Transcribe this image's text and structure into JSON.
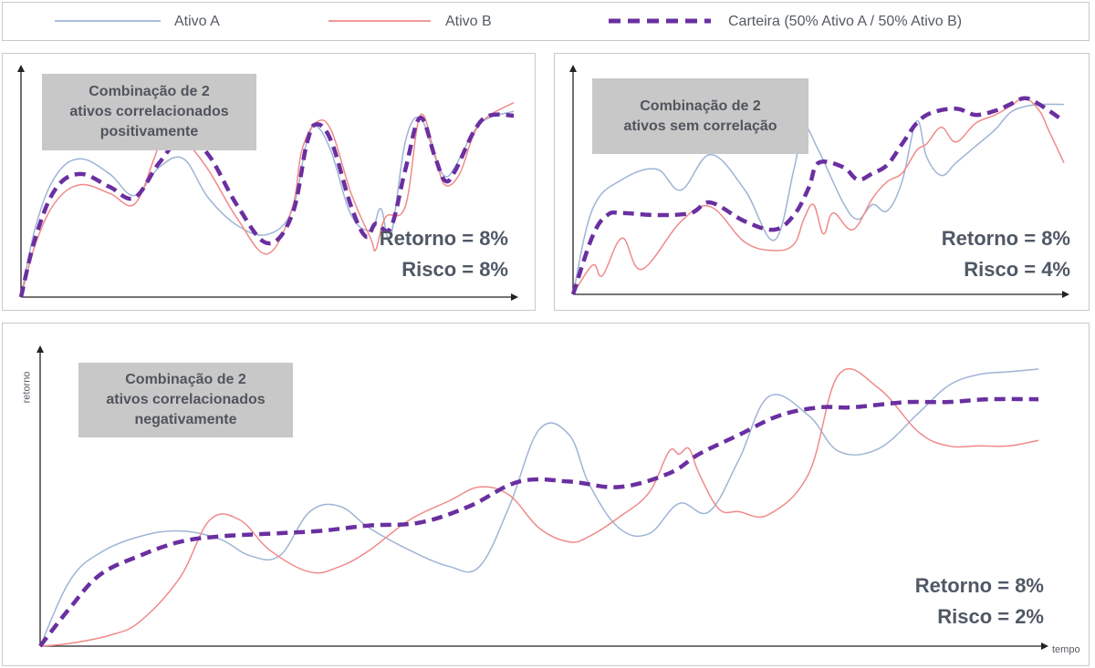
{
  "legend": {
    "items": [
      {
        "label": "Ativo A",
        "color": "#9fb4d6",
        "style": "solid"
      },
      {
        "label": "Ativo B",
        "color": "#f08a8a",
        "style": "solid"
      },
      {
        "label": "Carteira (50% Ativo A / 50% Ativo B)",
        "color": "#6a2fa0",
        "style": "dashed"
      }
    ]
  },
  "chart_data": [
    {
      "type": "line",
      "title": "Combinação de 2\nativos correlacionados\npositivamente",
      "annotations": [
        "Retorno = 8%",
        "Risco = 8%"
      ],
      "xlim": [
        0,
        100
      ],
      "ylim": [
        0,
        100
      ],
      "series": [
        {
          "name": "Ativo A",
          "x": [
            0,
            3,
            7,
            12,
            18,
            23,
            28,
            33,
            38,
            44,
            50,
            55,
            58,
            60,
            63,
            67,
            71,
            73,
            75,
            78,
            81,
            84,
            86,
            88,
            92,
            95,
            100
          ],
          "y": [
            0,
            33,
            56,
            64,
            57,
            47,
            60,
            64,
            46,
            33,
            29,
            40,
            72,
            79,
            67,
            38,
            31,
            41,
            28,
            72,
            83,
            65,
            56,
            60,
            77,
            83,
            86
          ]
        },
        {
          "name": "Ativo B",
          "x": [
            0,
            3,
            7,
            12,
            18,
            23,
            27,
            30,
            33,
            38,
            44,
            50,
            55,
            57,
            60,
            63,
            67,
            71,
            72,
            74,
            78,
            81,
            84,
            86,
            89,
            92,
            95,
            100
          ],
          "y": [
            0,
            25,
            44,
            52,
            48,
            43,
            64,
            83,
            74,
            59,
            36,
            20,
            41,
            68,
            81,
            77,
            48,
            27,
            22,
            37,
            42,
            84,
            66,
            52,
            57,
            76,
            84,
            90
          ]
        },
        {
          "name": "Carteira (50% Ativo A / 50% Ativo B)",
          "x": [
            0,
            3,
            7,
            12,
            18,
            23,
            28,
            33,
            38,
            44,
            50,
            55,
            58,
            60,
            63,
            67,
            70,
            72,
            75,
            78,
            81,
            84,
            86,
            88,
            92,
            95,
            100
          ],
          "y": [
            0,
            28,
            50,
            57,
            51,
            46,
            62,
            74,
            66,
            42,
            25,
            38,
            71,
            80,
            72,
            42,
            28,
            34,
            32,
            59,
            83,
            65,
            54,
            58,
            77,
            84,
            84
          ]
        }
      ]
    },
    {
      "type": "line",
      "title": "Combinação de 2\nativos sem correlação",
      "annotations": [
        "Retorno = 8%",
        "Risco = 4%"
      ],
      "xlim": [
        0,
        100
      ],
      "ylim": [
        0,
        100
      ],
      "series": [
        {
          "name": "Ativo A",
          "x": [
            0,
            4,
            10,
            17,
            22,
            28,
            35,
            41,
            45,
            47,
            50,
            55,
            58,
            61,
            64,
            67,
            70,
            72,
            75,
            78,
            82,
            86,
            89,
            92,
            95,
            100
          ],
          "y": [
            0,
            41,
            55,
            60,
            50,
            67,
            50,
            26,
            60,
            80,
            69,
            44,
            36,
            43,
            40,
            54,
            83,
            66,
            57,
            63,
            71,
            79,
            87,
            90,
            91,
            91
          ]
        },
        {
          "name": "Ativo B",
          "x": [
            0,
            4,
            6,
            10,
            14,
            22,
            28,
            35,
            41,
            45,
            47,
            49,
            51,
            53,
            57,
            61,
            64,
            67,
            70,
            72,
            75,
            78,
            82,
            86,
            89,
            92,
            95,
            97,
            100
          ],
          "y": [
            0,
            14,
            9,
            27,
            12,
            35,
            42,
            25,
            21,
            24,
            36,
            43,
            29,
            39,
            31,
            46,
            54,
            58,
            69,
            72,
            80,
            73,
            82,
            86,
            90,
            94,
            88,
            78,
            63
          ]
        },
        {
          "name": "Carteira (50% Ativo A / 50% Ativo B)",
          "x": [
            0,
            4,
            7,
            10,
            17,
            24,
            28,
            35,
            41,
            45,
            48,
            50,
            55,
            58,
            61,
            64,
            67,
            70,
            73,
            78,
            82,
            86,
            89,
            92,
            95,
            100
          ],
          "y": [
            0,
            28,
            38,
            39,
            38,
            39,
            44,
            35,
            31,
            38,
            51,
            63,
            61,
            55,
            58,
            62,
            72,
            82,
            87,
            89,
            86,
            88,
            91,
            94,
            91,
            83
          ]
        }
      ]
    },
    {
      "type": "line",
      "title": "Combinação de 2\nativos correlacionados\nnegativamente",
      "xlabel": "tempo",
      "ylabel": "retorno",
      "annotations": [
        "Retorno = 8%",
        "Risco = 2%"
      ],
      "xlim": [
        0,
        100
      ],
      "ylim": [
        0,
        100
      ],
      "series": [
        {
          "name": "Ativo A",
          "x": [
            0,
            3,
            6,
            10,
            14,
            18,
            21,
            24,
            27,
            30,
            33,
            37,
            41,
            44,
            47,
            50,
            53,
            55,
            58,
            61,
            64,
            67,
            70,
            73,
            77,
            80,
            84,
            88,
            91,
            94,
            97,
            100
          ],
          "y": [
            0,
            24,
            34,
            40,
            42,
            39,
            33,
            33,
            49,
            51,
            43,
            35,
            29,
            29,
            51,
            79,
            77,
            59,
            43,
            41,
            52,
            49,
            68,
            91,
            84,
            71,
            72,
            85,
            95,
            99,
            100,
            101
          ]
        },
        {
          "name": "Ativo B",
          "x": [
            0,
            3,
            7,
            10,
            14,
            17,
            20,
            23,
            27,
            30,
            33,
            37,
            41,
            44,
            47,
            50,
            53,
            55,
            58,
            61,
            63,
            64,
            65,
            66,
            68,
            70,
            73,
            77,
            80,
            84,
            88,
            91,
            94,
            97,
            100
          ],
          "y": [
            0,
            1,
            4,
            9,
            25,
            46,
            46,
            35,
            27,
            29,
            35,
            46,
            53,
            58,
            55,
            43,
            38,
            40,
            47,
            56,
            71,
            70,
            72,
            63,
            50,
            49,
            48,
            63,
            99,
            94,
            78,
            73,
            73,
            73,
            75
          ]
        },
        {
          "name": "Carteira (50% Ativo A / 50% Ativo B)",
          "x": [
            0,
            3,
            6,
            10,
            14,
            18,
            23,
            28,
            33,
            38,
            43,
            48,
            53,
            58,
            63,
            66,
            70,
            74,
            78,
            81,
            84,
            87,
            91,
            95,
            100
          ],
          "y": [
            0,
            14,
            26,
            33,
            38,
            40,
            41,
            42,
            44,
            45,
            51,
            60,
            60,
            58,
            63,
            70,
            77,
            84,
            87,
            87,
            88,
            89,
            89,
            90,
            90
          ]
        }
      ]
    }
  ]
}
